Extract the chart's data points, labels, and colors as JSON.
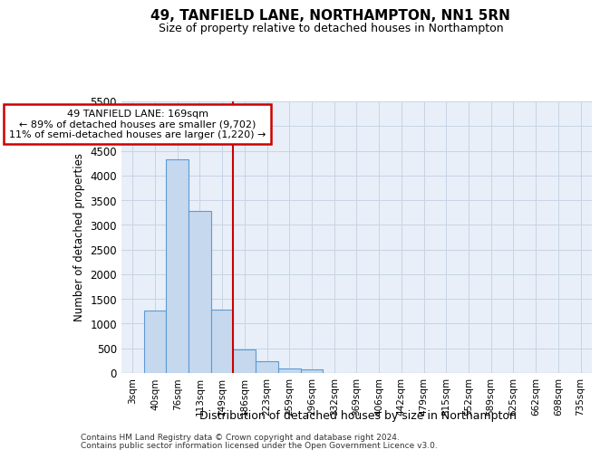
{
  "title": "49, TANFIELD LANE, NORTHAMPTON, NN1 5RN",
  "subtitle": "Size of property relative to detached houses in Northampton",
  "xlabel": "Distribution of detached houses by size in Northampton",
  "ylabel": "Number of detached properties",
  "footer1": "Contains HM Land Registry data © Crown copyright and database right 2024.",
  "footer2": "Contains public sector information licensed under the Open Government Licence v3.0.",
  "annotation_line1": "49 TANFIELD LANE: 169sqm",
  "annotation_line2": "← 89% of detached houses are smaller (9,702)",
  "annotation_line3": "11% of semi-detached houses are larger (1,220) →",
  "bar_color": "#c5d8ee",
  "bar_edge_color": "#5b9bd5",
  "vline_color": "#cc0000",
  "categories": [
    "3sqm",
    "40sqm",
    "76sqm",
    "113sqm",
    "149sqm",
    "186sqm",
    "223sqm",
    "259sqm",
    "296sqm",
    "332sqm",
    "369sqm",
    "406sqm",
    "442sqm",
    "479sqm",
    "515sqm",
    "552sqm",
    "589sqm",
    "625sqm",
    "662sqm",
    "698sqm",
    "735sqm"
  ],
  "values": [
    0,
    1270,
    4330,
    3280,
    1280,
    480,
    230,
    100,
    70,
    0,
    0,
    0,
    0,
    0,
    0,
    0,
    0,
    0,
    0,
    0,
    0
  ],
  "ylim": [
    0,
    5500
  ],
  "yticks": [
    0,
    500,
    1000,
    1500,
    2000,
    2500,
    3000,
    3500,
    4000,
    4500,
    5000,
    5500
  ],
  "vline_x": 4.5,
  "ax_bg_color": "#e8eff8",
  "grid_color": "#c8d4e4",
  "background_color": "#ffffff"
}
